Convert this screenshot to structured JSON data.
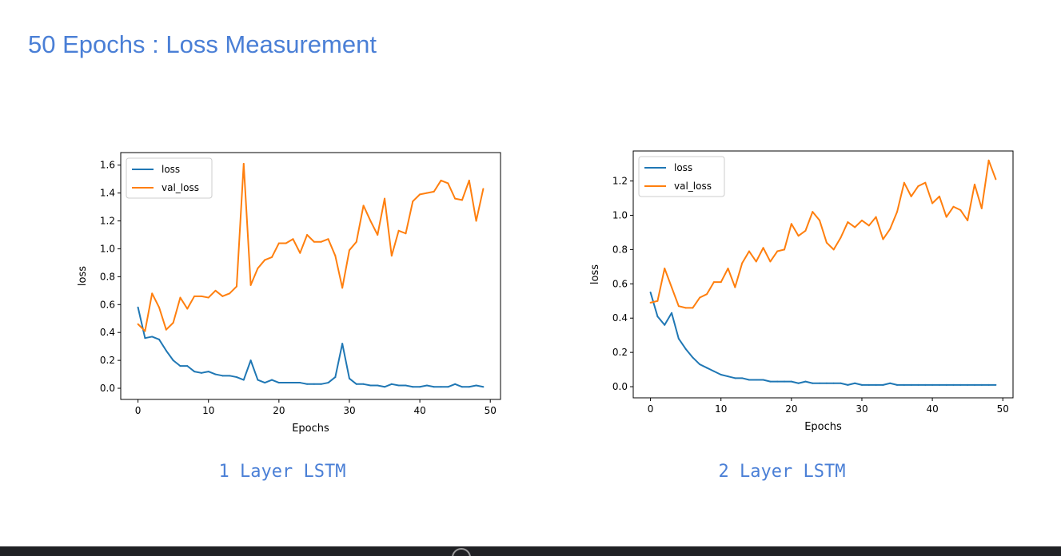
{
  "slide": {
    "title": "50 Epochs : Loss Measurement",
    "captions": [
      "1 Layer LSTM",
      "2 Layer LSTM"
    ]
  },
  "colors": {
    "title": "#4a7fd6",
    "caption": "#4a7fd6",
    "loss": "#1f77b4",
    "val_loss": "#ff7f0e"
  },
  "chart_data": [
    {
      "type": "line",
      "title": "",
      "xlabel": "Epochs",
      "ylabel": "loss",
      "xlim": [
        -2.45,
        51.45
      ],
      "ylim": [
        -0.08,
        1.69
      ],
      "xticks": [
        0,
        10,
        20,
        30,
        40,
        50
      ],
      "yticks": [
        0.0,
        0.2,
        0.4,
        0.6,
        0.8,
        1.0,
        1.2,
        1.4,
        1.6
      ],
      "ytick_labels": [
        "0.0",
        "0.2",
        "0.4",
        "0.6",
        "0.8",
        "1.0",
        "1.2",
        "1.4",
        "1.6"
      ],
      "grid": false,
      "legend": "top-left",
      "x": [
        0,
        1,
        2,
        3,
        4,
        5,
        6,
        7,
        8,
        9,
        10,
        11,
        12,
        13,
        14,
        15,
        16,
        17,
        18,
        19,
        20,
        21,
        22,
        23,
        24,
        25,
        26,
        27,
        28,
        29,
        30,
        31,
        32,
        33,
        34,
        35,
        36,
        37,
        38,
        39,
        40,
        41,
        42,
        43,
        44,
        45,
        46,
        47,
        48,
        49
      ],
      "series": [
        {
          "name": "loss",
          "color": "#1f77b4",
          "values": [
            0.58,
            0.36,
            0.37,
            0.35,
            0.27,
            0.2,
            0.16,
            0.16,
            0.12,
            0.11,
            0.12,
            0.1,
            0.09,
            0.09,
            0.08,
            0.06,
            0.2,
            0.06,
            0.04,
            0.06,
            0.04,
            0.04,
            0.04,
            0.04,
            0.03,
            0.03,
            0.03,
            0.04,
            0.08,
            0.32,
            0.07,
            0.03,
            0.03,
            0.02,
            0.02,
            0.01,
            0.03,
            0.02,
            0.02,
            0.01,
            0.01,
            0.02,
            0.01,
            0.01,
            0.01,
            0.03,
            0.01,
            0.01,
            0.02,
            0.01
          ]
        },
        {
          "name": "val_loss",
          "color": "#ff7f0e",
          "values": [
            0.46,
            0.41,
            0.68,
            0.58,
            0.42,
            0.47,
            0.65,
            0.57,
            0.66,
            0.66,
            0.65,
            0.7,
            0.66,
            0.68,
            0.73,
            1.61,
            0.74,
            0.86,
            0.92,
            0.94,
            1.04,
            1.04,
            1.07,
            0.97,
            1.1,
            1.05,
            1.05,
            1.07,
            0.95,
            0.72,
            0.99,
            1.05,
            1.31,
            1.2,
            1.1,
            1.36,
            0.95,
            1.13,
            1.11,
            1.34,
            1.39,
            1.4,
            1.41,
            1.49,
            1.47,
            1.36,
            1.35,
            1.49,
            1.2,
            1.43
          ]
        }
      ]
    },
    {
      "type": "line",
      "title": "",
      "xlabel": "Epochs",
      "ylabel": "loss",
      "xlim": [
        -2.45,
        51.45
      ],
      "ylim": [
        -0.065,
        1.375
      ],
      "xticks": [
        0,
        10,
        20,
        30,
        40,
        50
      ],
      "yticks": [
        0.0,
        0.2,
        0.4,
        0.6,
        0.8,
        1.0,
        1.2
      ],
      "ytick_labels": [
        "0.0",
        "0.2",
        "0.4",
        "0.6",
        "0.8",
        "1.0",
        "1.2"
      ],
      "grid": false,
      "legend": "top-left",
      "x": [
        0,
        1,
        2,
        3,
        4,
        5,
        6,
        7,
        8,
        9,
        10,
        11,
        12,
        13,
        14,
        15,
        16,
        17,
        18,
        19,
        20,
        21,
        22,
        23,
        24,
        25,
        26,
        27,
        28,
        29,
        30,
        31,
        32,
        33,
        34,
        35,
        36,
        37,
        38,
        39,
        40,
        41,
        42,
        43,
        44,
        45,
        46,
        47,
        48,
        49
      ],
      "series": [
        {
          "name": "loss",
          "color": "#1f77b4",
          "values": [
            0.55,
            0.41,
            0.36,
            0.43,
            0.28,
            0.22,
            0.17,
            0.13,
            0.11,
            0.09,
            0.07,
            0.06,
            0.05,
            0.05,
            0.04,
            0.04,
            0.04,
            0.03,
            0.03,
            0.03,
            0.03,
            0.02,
            0.03,
            0.02,
            0.02,
            0.02,
            0.02,
            0.02,
            0.01,
            0.02,
            0.01,
            0.01,
            0.01,
            0.01,
            0.02,
            0.01,
            0.01,
            0.01,
            0.01,
            0.01,
            0.01,
            0.01,
            0.01,
            0.01,
            0.01,
            0.01,
            0.01,
            0.01,
            0.01,
            0.01
          ]
        },
        {
          "name": "val_loss",
          "color": "#ff7f0e",
          "values": [
            0.49,
            0.5,
            0.69,
            0.58,
            0.47,
            0.46,
            0.46,
            0.52,
            0.54,
            0.61,
            0.61,
            0.69,
            0.58,
            0.72,
            0.79,
            0.73,
            0.81,
            0.73,
            0.79,
            0.8,
            0.95,
            0.88,
            0.91,
            1.02,
            0.97,
            0.84,
            0.8,
            0.87,
            0.96,
            0.93,
            0.97,
            0.94,
            0.99,
            0.86,
            0.92,
            1.02,
            1.19,
            1.11,
            1.17,
            1.19,
            1.07,
            1.11,
            0.99,
            1.05,
            1.03,
            0.97,
            1.18,
            1.04,
            1.32,
            1.21
          ]
        }
      ]
    }
  ]
}
